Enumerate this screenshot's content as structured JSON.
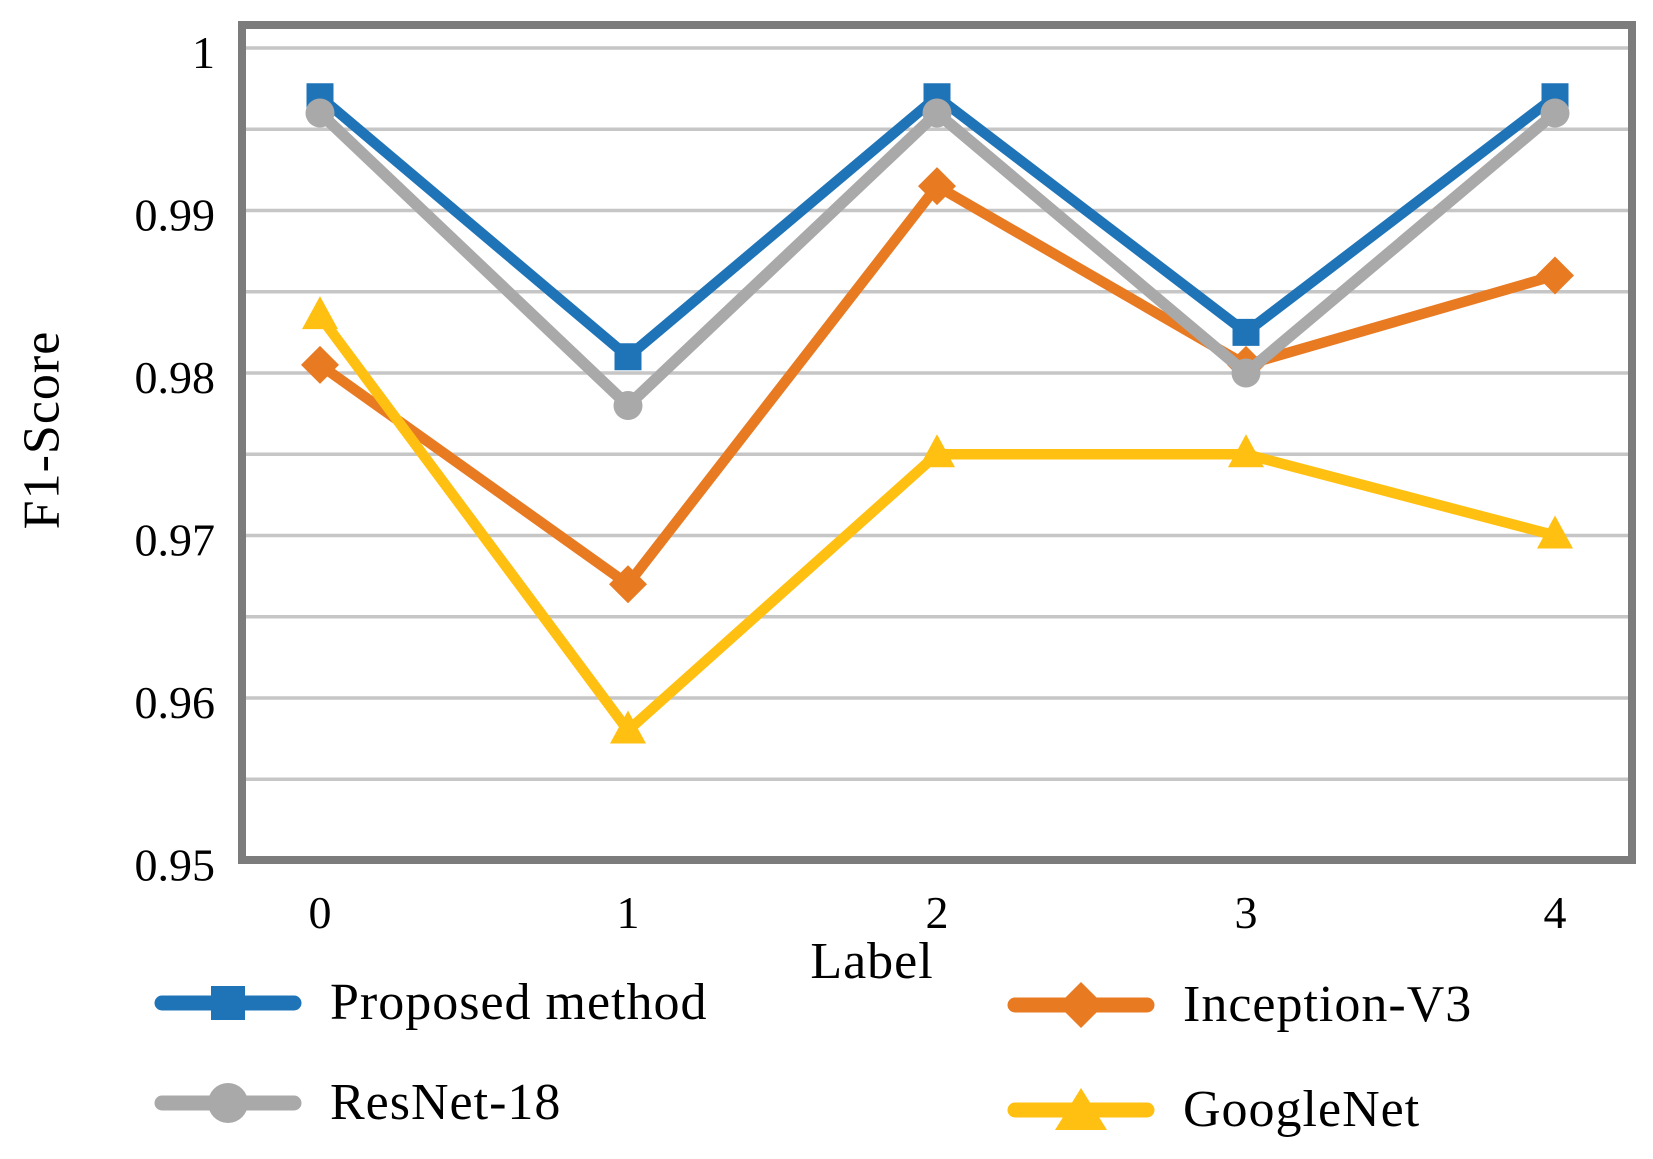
{
  "chart_data": {
    "type": "line",
    "title": "",
    "xlabel": "Label",
    "ylabel": "F1-Score",
    "categories": [
      "0",
      "1",
      "2",
      "3",
      "4"
    ],
    "ylim": [
      0.95,
      1.0
    ],
    "ytick_labels": [
      "1",
      "0.99",
      "0.98",
      "0.97",
      "0.96",
      "0.95"
    ],
    "ytick_values": [
      1.0,
      0.99,
      0.98,
      0.97,
      0.96,
      0.95
    ],
    "grid": "horizontal minor gridlines every 0.005, light gray",
    "legend_position": "bottom, two columns",
    "series": [
      {
        "name": "Proposed method",
        "color": "#1F74B8",
        "marker": "square",
        "values": [
          0.997,
          0.981,
          0.997,
          0.9825,
          0.997
        ]
      },
      {
        "name": "Inception-V3",
        "color": "#E87A22",
        "marker": "diamond",
        "values": [
          0.9805,
          0.967,
          0.9915,
          0.9805,
          0.986
        ]
      },
      {
        "name": "ResNet-18",
        "color": "#A9A9A9",
        "marker": "circle",
        "values": [
          0.996,
          0.978,
          0.996,
          0.98,
          0.996
        ]
      },
      {
        "name": "GoogleNet",
        "color": "#FFC011",
        "marker": "triangle",
        "values": [
          0.9835,
          0.958,
          0.975,
          0.975,
          0.97
        ]
      }
    ],
    "colors": {
      "plot_border": "#7C7C7C",
      "gridline": "#C6C6C6",
      "text": "#000000"
    }
  }
}
